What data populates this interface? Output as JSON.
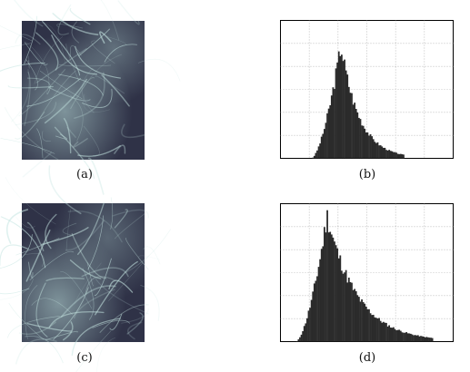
{
  "figure": {
    "panels": [
      {
        "id": "a",
        "caption": "(a)",
        "kind": "texture-image",
        "colors": {
          "dark": "#2f3247",
          "mid": "#6d7a96",
          "light": "#bfe3df"
        }
      },
      {
        "id": "b",
        "caption": "(b)",
        "kind": "histogram"
      },
      {
        "id": "c",
        "caption": "(c)",
        "kind": "texture-image",
        "colors": {
          "dark": "#2f3247",
          "mid": "#6d7a96",
          "light": "#bfe3df"
        }
      },
      {
        "id": "d",
        "caption": "(d)",
        "kind": "histogram"
      }
    ]
  },
  "chart_data": [
    {
      "type": "bar",
      "panel": "b",
      "title": "",
      "xlabel": "",
      "ylabel": "",
      "grid": true,
      "bar_color": "#2b2b2b",
      "xlim": [
        0,
        1
      ],
      "ylim": [
        0,
        1
      ],
      "distribution": {
        "peak_x": 0.35,
        "peak_y": 0.83,
        "start_x": 0.18,
        "end_x": 0.72,
        "skew": "right"
      }
    },
    {
      "type": "bar",
      "panel": "d",
      "title": "",
      "xlabel": "",
      "ylabel": "",
      "grid": true,
      "bar_color": "#2b2b2b",
      "xlim": [
        0,
        1
      ],
      "ylim": [
        0,
        1
      ],
      "distribution": {
        "peak_x": 0.27,
        "peak_y": 0.92,
        "start_x": 0.09,
        "end_x": 0.88,
        "skew": "right"
      }
    }
  ]
}
